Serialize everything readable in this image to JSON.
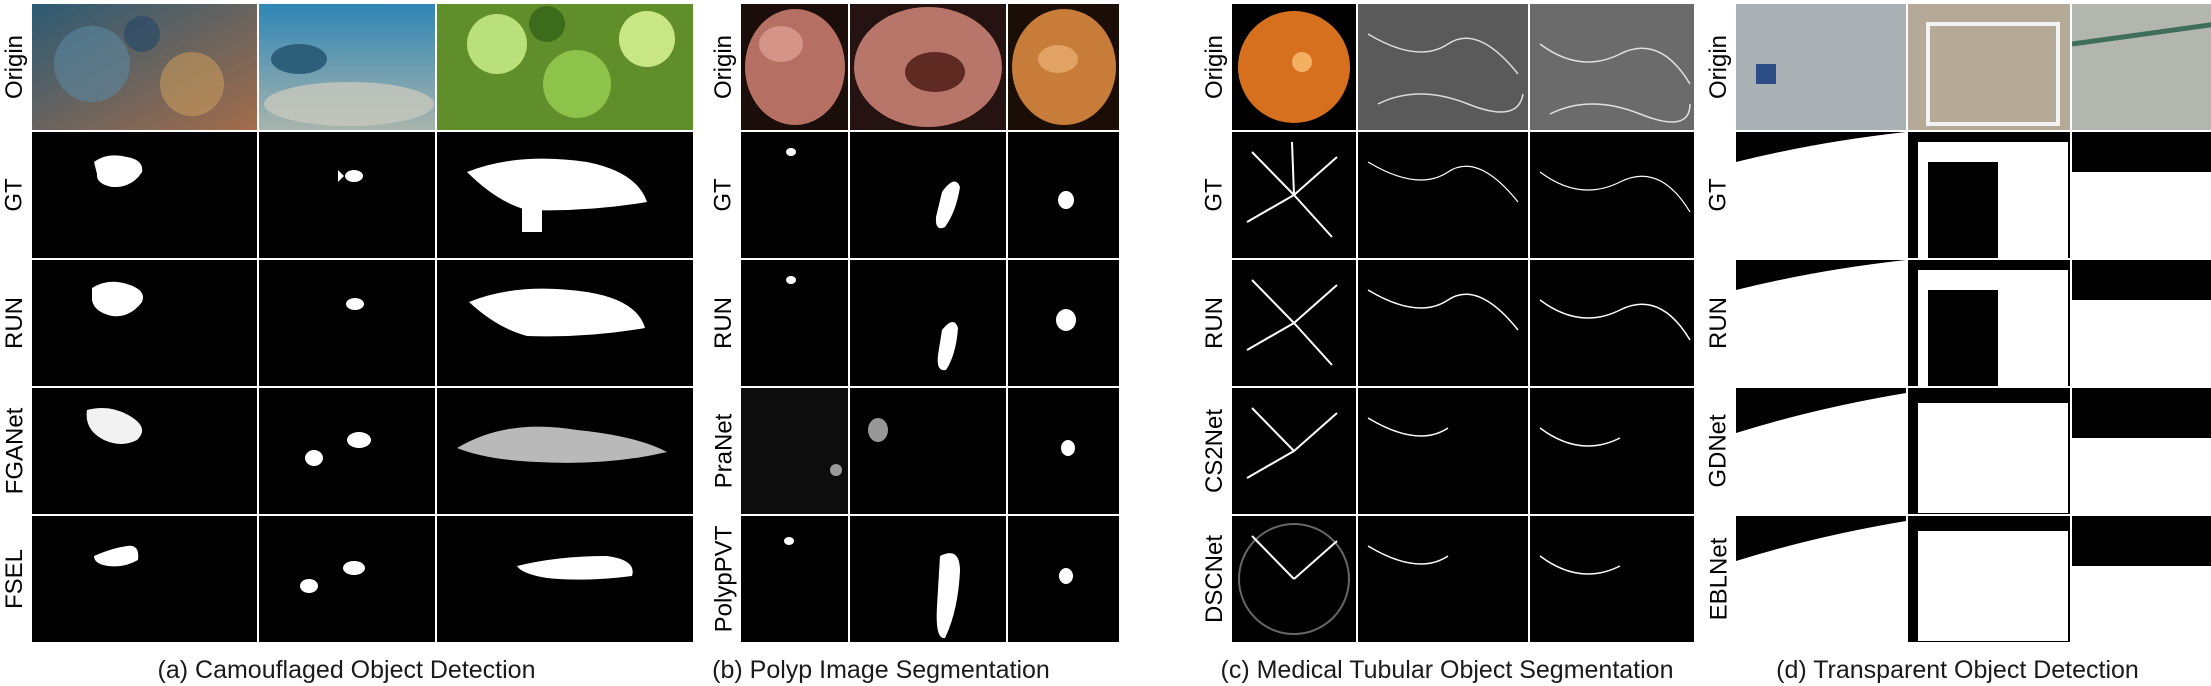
{
  "panels": [
    {
      "caption": "(a) Camouflaged Object Detection",
      "rows": [
        "Origin",
        "GT",
        "RUN",
        "FGANet",
        "FSEL"
      ],
      "origin_colors": [
        "#3d6e86",
        "#3d8fb5",
        "#6aa030"
      ]
    },
    {
      "caption": "(b) Polyp Image Segmentation",
      "rows": [
        "Origin",
        "GT",
        "RUN",
        "PraNet",
        "PolypPVT"
      ],
      "origin_colors": [
        "#b56f63",
        "#b8756a",
        "#c77c3a"
      ]
    },
    {
      "caption": "(c) Medical Tubular Object Segmentation",
      "rows": [
        "Origin",
        "GT",
        "RUN",
        "CS2Net",
        "DSCNet"
      ],
      "origin_colors": [
        "#d6701f",
        "#5a5a5a",
        "#6b6b6b"
      ]
    },
    {
      "caption": "(d) Transparent Object Detection",
      "rows": [
        "Origin",
        "GT",
        "RUN",
        "GDNet",
        "EBLNet"
      ],
      "origin_colors": [
        "#a9b1b4",
        "#b5a998",
        "#b3b6ae"
      ]
    }
  ]
}
